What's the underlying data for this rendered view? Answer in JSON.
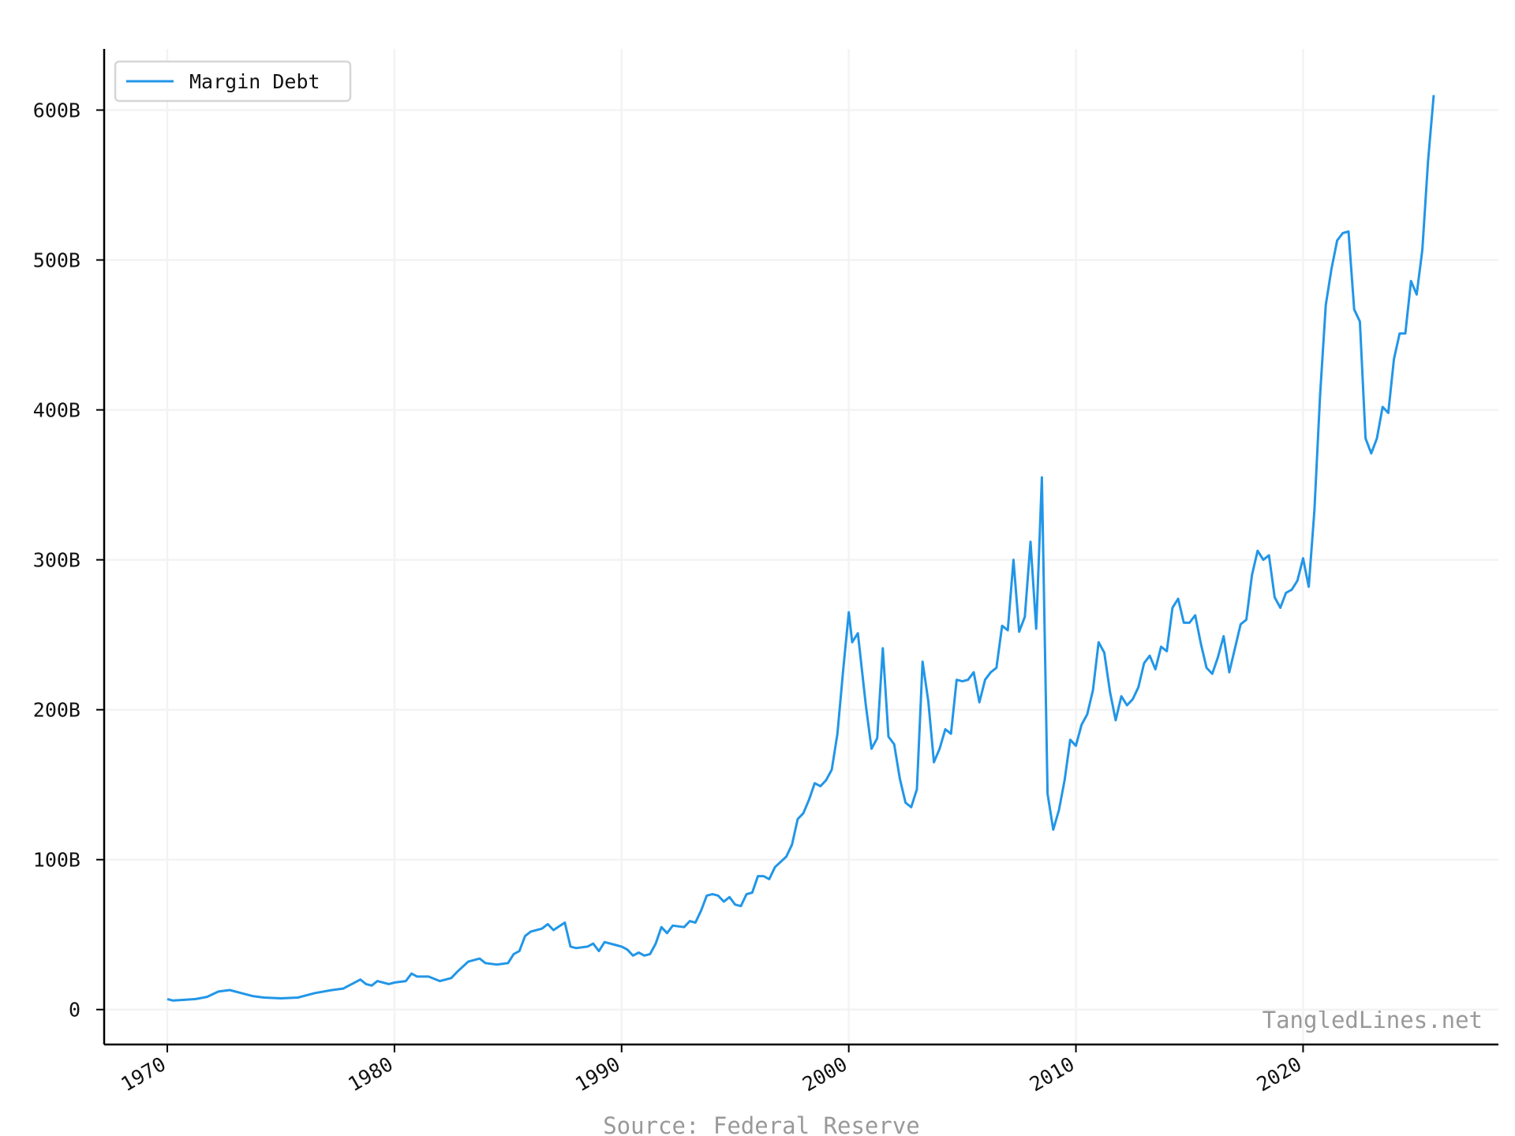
{
  "chart_data": {
    "type": "line",
    "source": "Source: Federal Reserve",
    "watermark": "TangledLines.net",
    "legend": "upper left",
    "grid": true,
    "x": [
      1970,
      1970.25,
      1970.75,
      1971.25,
      1971.75,
      1972.25,
      1972.75,
      1973.25,
      1973.75,
      1974.25,
      1975,
      1975.75,
      1976.5,
      1977.25,
      1977.75,
      1978.5,
      1978.75,
      1979,
      1979.25,
      1979.75,
      1980,
      1980.5,
      1980.75,
      1981,
      1981.5,
      1982,
      1982.5,
      1982.75,
      1983.25,
      1983.75,
      1984,
      1984.5,
      1985,
      1985.25,
      1985.5,
      1985.75,
      1986,
      1986.5,
      1986.75,
      1987,
      1987.5,
      1987.75,
      1988,
      1988.5,
      1988.75,
      1989,
      1989.25,
      1989.75,
      1990,
      1990.25,
      1990.5,
      1990.75,
      1991,
      1991.25,
      1991.5,
      1991.75,
      1992,
      1992.25,
      1992.75,
      1993,
      1993.25,
      1993.5,
      1993.75,
      1994,
      1994.25,
      1994.5,
      1994.75,
      1995,
      1995.25,
      1995.5,
      1995.75,
      1996,
      1996.25,
      1996.5,
      1996.75,
      1997.25,
      1997.5,
      1997.75,
      1998,
      1998.25,
      1998.5,
      1998.75,
      1999,
      1999.25,
      1999.5,
      1999.75,
      2000,
      2000.15,
      2000.4,
      2000.75,
      2001,
      2001.25,
      2001.5,
      2001.75,
      2002,
      2002.25,
      2002.5,
      2002.75,
      2003,
      2003.25,
      2003.5,
      2003.75,
      2004,
      2004.25,
      2004.5,
      2004.75,
      2005,
      2005.25,
      2005.5,
      2005.75,
      2006,
      2006.25,
      2006.5,
      2006.75,
      2007,
      2007.25,
      2007.5,
      2007.75,
      2008,
      2008.25,
      2008.5,
      2008.75,
      2009,
      2009.25,
      2009.5,
      2009.75,
      2010,
      2010.25,
      2010.5,
      2010.75,
      2011,
      2011.25,
      2011.5,
      2011.75,
      2012,
      2012.25,
      2012.5,
      2012.75,
      2013,
      2013.25,
      2013.5,
      2013.75,
      2014,
      2014.25,
      2014.5,
      2014.75,
      2015,
      2015.25,
      2015.5,
      2015.75,
      2016,
      2016.25,
      2016.5,
      2016.75,
      2017,
      2017.25,
      2017.5,
      2017.75,
      2018,
      2018.25,
      2018.5,
      2018.75,
      2019,
      2019.25,
      2019.5,
      2019.75,
      2020,
      2020.25,
      2020.5,
      2020.75,
      2021,
      2021.25,
      2021.5,
      2021.75,
      2022,
      2022.25,
      2022.5,
      2022.75,
      2023,
      2023.25,
      2023.5,
      2023.75,
      2024,
      2024.25,
      2024.5,
      2024.75,
      2025,
      2025.25,
      2025.5,
      2025.75
    ],
    "series": [
      {
        "name": "Margin Debt",
        "color": "#2196e8",
        "values": [
          7,
          6,
          6.5,
          7,
          8.5,
          12,
          13,
          11,
          9,
          8,
          7.5,
          8,
          11,
          13,
          14,
          20,
          17,
          16,
          19,
          17,
          18,
          19,
          24,
          22,
          22,
          19,
          21,
          25,
          32,
          34,
          31,
          30,
          31,
          37,
          39,
          49,
          52,
          54,
          57,
          53,
          58,
          42,
          41,
          42,
          44,
          39,
          45,
          43,
          42,
          40,
          36,
          38,
          36,
          37,
          44,
          55,
          51,
          56,
          55,
          59,
          58,
          66,
          76,
          77,
          76,
          72,
          75,
          70,
          69,
          77,
          78,
          89,
          89,
          87,
          95,
          102,
          110,
          127,
          131,
          140,
          151,
          149,
          153,
          160,
          184,
          226,
          265,
          245,
          251,
          203,
          174,
          181,
          241,
          182,
          177,
          154,
          138,
          135,
          147,
          232,
          206,
          165,
          174,
          187,
          184,
          220,
          219,
          220,
          225,
          205,
          220,
          225,
          228,
          256,
          253,
          300,
          252,
          262,
          312,
          254,
          355,
          144,
          120,
          133,
          153,
          180,
          176,
          190,
          197,
          213,
          245,
          238,
          212,
          193,
          209,
          203,
          207,
          215,
          231,
          236,
          227,
          242,
          239,
          268,
          274,
          258,
          258,
          263,
          244,
          228,
          224,
          235,
          249,
          225,
          241,
          257,
          260,
          290,
          306,
          300,
          303,
          275,
          268,
          278,
          280,
          286,
          301,
          282,
          333,
          410,
          470,
          494,
          513,
          518,
          519,
          467,
          459,
          381,
          371,
          381,
          402,
          398,
          434,
          451,
          451,
          486,
          477,
          507,
          566,
          610
        ]
      }
    ],
    "xlim": [
      1967.22,
      2028.6
    ],
    "xticks": [
      1970,
      1980,
      1990,
      2000,
      2010,
      2020
    ],
    "ylim": [
      -23.3,
      640.8
    ],
    "yticks": [
      {
        "value": 0,
        "label": "0"
      },
      {
        "value": 100,
        "label": "100B"
      },
      {
        "value": 200,
        "label": "200B"
      },
      {
        "value": 300,
        "label": "300B"
      },
      {
        "value": 400,
        "label": "400B"
      },
      {
        "value": 500,
        "label": "500B"
      },
      {
        "value": 600,
        "label": "600B"
      }
    ]
  }
}
